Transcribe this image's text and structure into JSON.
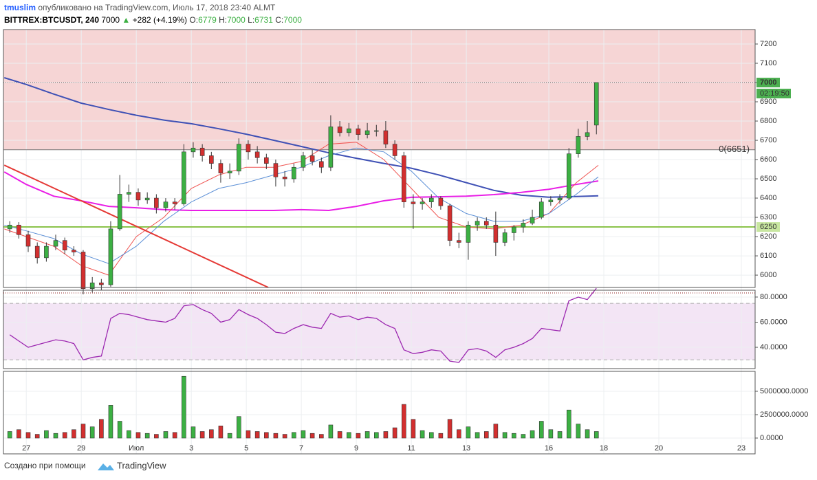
{
  "header": {
    "user": "tmuslim",
    "published": "опубликовано на TradingView.com, Июль 17, 2018 23:40 ALMT",
    "symbol": "BITTREX:BTCUSDT, 240",
    "last": "7000",
    "change": "+282 (+4.19%)",
    "ohlc": [
      {
        "label": "O:",
        "value": "6779"
      },
      {
        "label": "H:",
        "value": "7000"
      },
      {
        "label": "L:",
        "value": "6731"
      },
      {
        "label": "C:",
        "value": "7000"
      }
    ]
  },
  "chart_data": [
    {
      "type": "candlestick",
      "up_color": "#3cb043",
      "down_color": "#d32f2f",
      "xlim": [
        -0.83,
        26.5
      ],
      "ylim": [
        5936,
        7275
      ],
      "yticks": [
        6000,
        6100,
        6200,
        6300,
        6400,
        6500,
        6600,
        6700,
        6800,
        6900,
        7000,
        7100,
        7200
      ],
      "x": [
        -0.6,
        -0.27,
        0.07,
        0.4,
        0.73,
        1.07,
        1.4,
        1.73,
        2.07,
        2.4,
        2.73,
        3.07,
        3.4,
        3.73,
        4.07,
        4.4,
        4.73,
        5.07,
        5.4,
        5.73,
        6.07,
        6.4,
        6.73,
        7.07,
        7.4,
        7.73,
        8.07,
        8.4,
        8.73,
        9.07,
        9.4,
        9.73,
        10.07,
        10.4,
        10.73,
        11.07,
        11.4,
        11.73,
        12.07,
        12.4,
        12.73,
        13.07,
        13.4,
        13.73,
        14.07,
        14.4,
        14.73,
        15.07,
        15.4,
        15.73,
        16.07,
        16.4,
        16.73,
        17.07,
        17.4,
        17.73,
        18.07,
        18.4,
        18.73,
        19.07,
        19.4,
        19.73,
        20.07,
        20.4,
        20.73
      ],
      "ohlc": [
        [
          6240,
          6280,
          6220,
          6260
        ],
        [
          6260,
          6275,
          6190,
          6210
        ],
        [
          6210,
          6230,
          6120,
          6150
        ],
        [
          6150,
          6170,
          6060,
          6090
        ],
        [
          6090,
          6170,
          6070,
          6150
        ],
        [
          6150,
          6210,
          6130,
          6180
        ],
        [
          6180,
          6195,
          6110,
          6130
        ],
        [
          6130,
          6150,
          6100,
          6120
        ],
        [
          6120,
          6130,
          5900,
          5930
        ],
        [
          5930,
          5990,
          5910,
          5960
        ],
        [
          5960,
          5980,
          5920,
          5950
        ],
        [
          5950,
          6280,
          5940,
          6240
        ],
        [
          6240,
          6520,
          6230,
          6420
        ],
        [
          6420,
          6470,
          6380,
          6430
        ],
        [
          6430,
          6450,
          6360,
          6390
        ],
        [
          6390,
          6430,
          6370,
          6400
        ],
        [
          6400,
          6420,
          6320,
          6350
        ],
        [
          6350,
          6400,
          6330,
          6380
        ],
        [
          6380,
          6400,
          6340,
          6370
        ],
        [
          6370,
          6680,
          6360,
          6640
        ],
        [
          6640,
          6690,
          6610,
          6660
        ],
        [
          6660,
          6680,
          6590,
          6620
        ],
        [
          6620,
          6640,
          6550,
          6580
        ],
        [
          6580,
          6600,
          6480,
          6530
        ],
        [
          6530,
          6580,
          6500,
          6540
        ],
        [
          6540,
          6710,
          6520,
          6680
        ],
        [
          6680,
          6700,
          6600,
          6640
        ],
        [
          6640,
          6670,
          6580,
          6610
        ],
        [
          6610,
          6630,
          6550,
          6580
        ],
        [
          6580,
          6600,
          6460,
          6510
        ],
        [
          6510,
          6540,
          6460,
          6500
        ],
        [
          6500,
          6580,
          6480,
          6560
        ],
        [
          6560,
          6640,
          6540,
          6620
        ],
        [
          6620,
          6650,
          6570,
          6590
        ],
        [
          6590,
          6610,
          6530,
          6560
        ],
        [
          6560,
          6830,
          6540,
          6770
        ],
        [
          6770,
          6800,
          6720,
          6740
        ],
        [
          6740,
          6790,
          6720,
          6760
        ],
        [
          6760,
          6780,
          6700,
          6730
        ],
        [
          6730,
          6790,
          6710,
          6750
        ],
        [
          6750,
          6780,
          6720,
          6750
        ],
        [
          6750,
          6800,
          6660,
          6680
        ],
        [
          6680,
          6700,
          6600,
          6620
        ],
        [
          6620,
          6640,
          6350,
          6380
        ],
        [
          6380,
          6420,
          6240,
          6370
        ],
        [
          6370,
          6400,
          6340,
          6380
        ],
        [
          6380,
          6420,
          6350,
          6400
        ],
        [
          6400,
          6410,
          6340,
          6360
        ],
        [
          6360,
          6370,
          6150,
          6180
        ],
        [
          6180,
          6220,
          6140,
          6170
        ],
        [
          6170,
          6280,
          6080,
          6260
        ],
        [
          6260,
          6300,
          6230,
          6280
        ],
        [
          6280,
          6300,
          6240,
          6260
        ],
        [
          6260,
          6330,
          6100,
          6170
        ],
        [
          6170,
          6240,
          6150,
          6220
        ],
        [
          6220,
          6260,
          6180,
          6250
        ],
        [
          6250,
          6290,
          6220,
          6270
        ],
        [
          6270,
          6340,
          6260,
          6300
        ],
        [
          6300,
          6400,
          6290,
          6380
        ],
        [
          6380,
          6410,
          6360,
          6390
        ],
        [
          6390,
          6420,
          6370,
          6400
        ],
        [
          6400,
          6660,
          6390,
          6630
        ],
        [
          6630,
          6760,
          6610,
          6720
        ],
        [
          6720,
          6800,
          6700,
          6740
        ],
        [
          6779,
          7000,
          6731,
          7000
        ]
      ],
      "ma_x": [
        -0.8,
        0,
        1,
        2,
        3,
        4,
        5,
        6,
        7,
        8,
        9,
        10,
        11,
        12,
        13,
        14,
        15,
        16,
        17,
        18,
        19,
        20,
        20.8
      ],
      "ma_series": [
        {
          "color": "#3f51b5",
          "values": [
            7025,
            6990,
            6940,
            6893,
            6860,
            6830,
            6805,
            6786,
            6760,
            6732,
            6700,
            6668,
            6635,
            6607,
            6580,
            6555,
            6520,
            6480,
            6440,
            6415,
            6405,
            6408,
            6412
          ]
        },
        {
          "color": "#e91ee6",
          "values": [
            6536,
            6471,
            6410,
            6386,
            6357,
            6350,
            6340,
            6336,
            6336,
            6336,
            6336,
            6340,
            6336,
            6357,
            6386,
            6404,
            6407,
            6410,
            6418,
            6430,
            6446,
            6471,
            6489
          ]
        },
        {
          "color": "#ef5350",
          "values": [
            6240,
            6200,
            6150,
            6050,
            6000,
            6200,
            6300,
            6450,
            6520,
            6560,
            6560,
            6590,
            6680,
            6690,
            6600,
            6450,
            6300,
            6250,
            6240,
            6260,
            6320,
            6480,
            6570
          ]
        },
        {
          "color": "#5b8fd6",
          "values": [
            6260,
            6230,
            6190,
            6110,
            6060,
            6150,
            6280,
            6380,
            6450,
            6480,
            6520,
            6560,
            6620,
            6660,
            6640,
            6540,
            6400,
            6320,
            6280,
            6280,
            6320,
            6420,
            6510
          ]
        }
      ],
      "trendline": {
        "color": "#e53935",
        "x": [
          -0.8,
          8.8
        ],
        "y": [
          6571,
          5936
        ]
      },
      "zone": {
        "from": 6651,
        "color": "#f6d5d5",
        "label": "0(6651)"
      },
      "hline": {
        "value": 6250,
        "label": "6250",
        "color": "#8bc34a"
      },
      "last_price": {
        "value": 7000,
        "label": "7000",
        "countdown": "02:19:50",
        "color": "#4caf50"
      }
    },
    {
      "type": "line",
      "color": "#9c27b0",
      "band": [
        30,
        75
      ],
      "band_color": "#f3e5f5",
      "xlim": [
        -0.83,
        26.5
      ],
      "ylim": [
        23.6,
        84.9
      ],
      "yticks": [
        {
          "value": 80,
          "label": "80.0000"
        },
        {
          "value": 60,
          "label": "60.0000"
        },
        {
          "value": 40,
          "label": "40.0000"
        }
      ],
      "x": [
        -0.6,
        -0.27,
        0.07,
        0.4,
        0.73,
        1.07,
        1.4,
        1.73,
        2.07,
        2.4,
        2.73,
        3.07,
        3.4,
        3.73,
        4.07,
        4.4,
        4.73,
        5.07,
        5.4,
        5.73,
        6.07,
        6.4,
        6.73,
        7.07,
        7.4,
        7.73,
        8.07,
        8.4,
        8.73,
        9.07,
        9.4,
        9.73,
        10.07,
        10.4,
        10.73,
        11.07,
        11.4,
        11.73,
        12.07,
        12.4,
        12.73,
        13.07,
        13.4,
        13.73,
        14.07,
        14.4,
        14.73,
        15.07,
        15.4,
        15.73,
        16.07,
        16.4,
        16.73,
        17.07,
        17.4,
        17.73,
        18.07,
        18.4,
        18.73,
        19.07,
        19.4,
        19.73,
        20.07,
        20.4,
        20.73
      ],
      "values": [
        50,
        45,
        40,
        42,
        44,
        46,
        45,
        43,
        30,
        32,
        33,
        63,
        67,
        66,
        64,
        62,
        61,
        60,
        63,
        73,
        74,
        70,
        67,
        60,
        62,
        70,
        66,
        63,
        58,
        52,
        51,
        55,
        58,
        56,
        55,
        67,
        64,
        65,
        62,
        64,
        63,
        58,
        55,
        38,
        35,
        36,
        38,
        37,
        29,
        28,
        38,
        39,
        37,
        32,
        38,
        40,
        43,
        47,
        55,
        54,
        53,
        77,
        80,
        78,
        87
      ]
    },
    {
      "type": "bar",
      "up_color": "#3cb043",
      "down_color": "#d32f2f",
      "xlim": [
        -0.83,
        26.5
      ],
      "ylim": [
        -1690000,
        7130000
      ],
      "yticks": [
        {
          "value": 5000000,
          "label": "5000000.0000"
        },
        {
          "value": 2500000,
          "label": "2500000.0000"
        },
        {
          "value": 0,
          "label": "0.0000"
        }
      ],
      "xticks": [
        {
          "value": 0,
          "label": "27"
        },
        {
          "value": 2,
          "label": "29"
        },
        {
          "value": 4,
          "label": "Июл"
        },
        {
          "value": 6,
          "label": "3"
        },
        {
          "value": 8,
          "label": "5"
        },
        {
          "value": 10,
          "label": "7"
        },
        {
          "value": 12,
          "label": "9"
        },
        {
          "value": 14,
          "label": "11"
        },
        {
          "value": 16,
          "label": "13"
        },
        {
          "value": 19,
          "label": "16"
        },
        {
          "value": 21,
          "label": "18"
        },
        {
          "value": 23,
          "label": "20"
        },
        {
          "value": 26,
          "label": "23"
        }
      ],
      "x": [
        -0.6,
        -0.27,
        0.07,
        0.4,
        0.73,
        1.07,
        1.4,
        1.73,
        2.07,
        2.4,
        2.73,
        3.07,
        3.4,
        3.73,
        4.07,
        4.4,
        4.73,
        5.07,
        5.4,
        5.73,
        6.07,
        6.4,
        6.73,
        7.07,
        7.4,
        7.73,
        8.07,
        8.4,
        8.73,
        9.07,
        9.4,
        9.73,
        10.07,
        10.4,
        10.73,
        11.07,
        11.4,
        11.73,
        12.07,
        12.4,
        12.73,
        13.07,
        13.4,
        13.73,
        14.07,
        14.4,
        14.73,
        15.07,
        15.4,
        15.73,
        16.07,
        16.4,
        16.73,
        17.07,
        17.4,
        17.73,
        18.07,
        18.4,
        18.73,
        19.07,
        19.4,
        19.73,
        20.07,
        20.4,
        20.73
      ],
      "values": [
        700000,
        900000,
        600000,
        400000,
        800000,
        500000,
        600000,
        900000,
        1500000,
        1200000,
        2000000,
        3500000,
        1800000,
        800000,
        600000,
        500000,
        400000,
        700000,
        600000,
        6600000,
        1200000,
        700000,
        900000,
        1300000,
        500000,
        2300000,
        800000,
        700000,
        600000,
        500000,
        400000,
        600000,
        800000,
        500000,
        400000,
        1400000,
        700000,
        600000,
        500000,
        700000,
        600000,
        700000,
        1100000,
        3600000,
        2000000,
        800000,
        600000,
        500000,
        2000000,
        900000,
        1200000,
        600000,
        700000,
        1500000,
        600000,
        500000,
        400000,
        800000,
        1800000,
        900000,
        700000,
        3000000,
        1500000,
        900000,
        700000
      ]
    }
  ],
  "footer": {
    "made_with": "Создано при помощи",
    "brand": "TradingView"
  }
}
